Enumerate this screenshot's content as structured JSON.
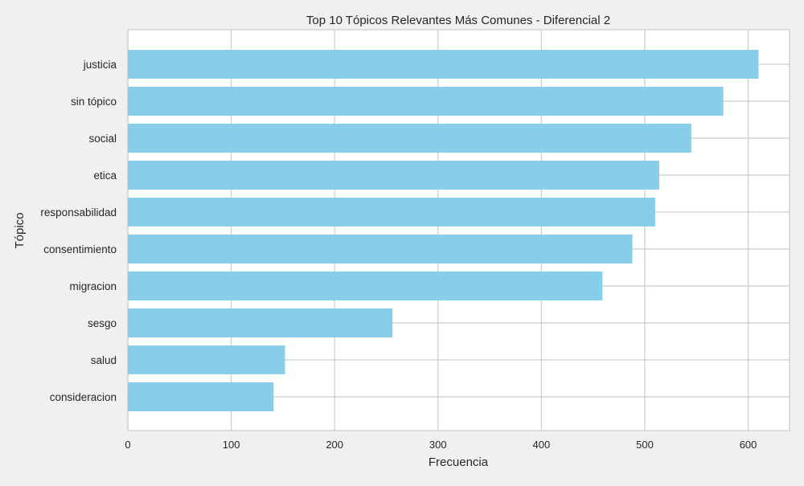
{
  "chart_data": {
    "type": "bar",
    "orientation": "horizontal",
    "title": "Top 10 Tópicos Relevantes Más Comunes - Diferencial 2",
    "xlabel": "Frecuencia",
    "ylabel": "Tópico",
    "categories": [
      "justicia",
      "sin tópico",
      "social",
      "etica",
      "responsabilidad",
      "consentimiento",
      "migracion",
      "sesgo",
      "salud",
      "consideracion"
    ],
    "values": [
      610,
      576,
      545,
      514,
      510,
      488,
      459,
      256,
      152,
      141
    ],
    "xlim": [
      0,
      640
    ],
    "xticks": [
      0,
      100,
      200,
      300,
      400,
      500,
      600
    ],
    "grid": true,
    "bar_color": "#87ceeb",
    "background_color": "#f0f0f0",
    "plot_background_color": "#ffffff",
    "grid_color": "#cccccc"
  }
}
